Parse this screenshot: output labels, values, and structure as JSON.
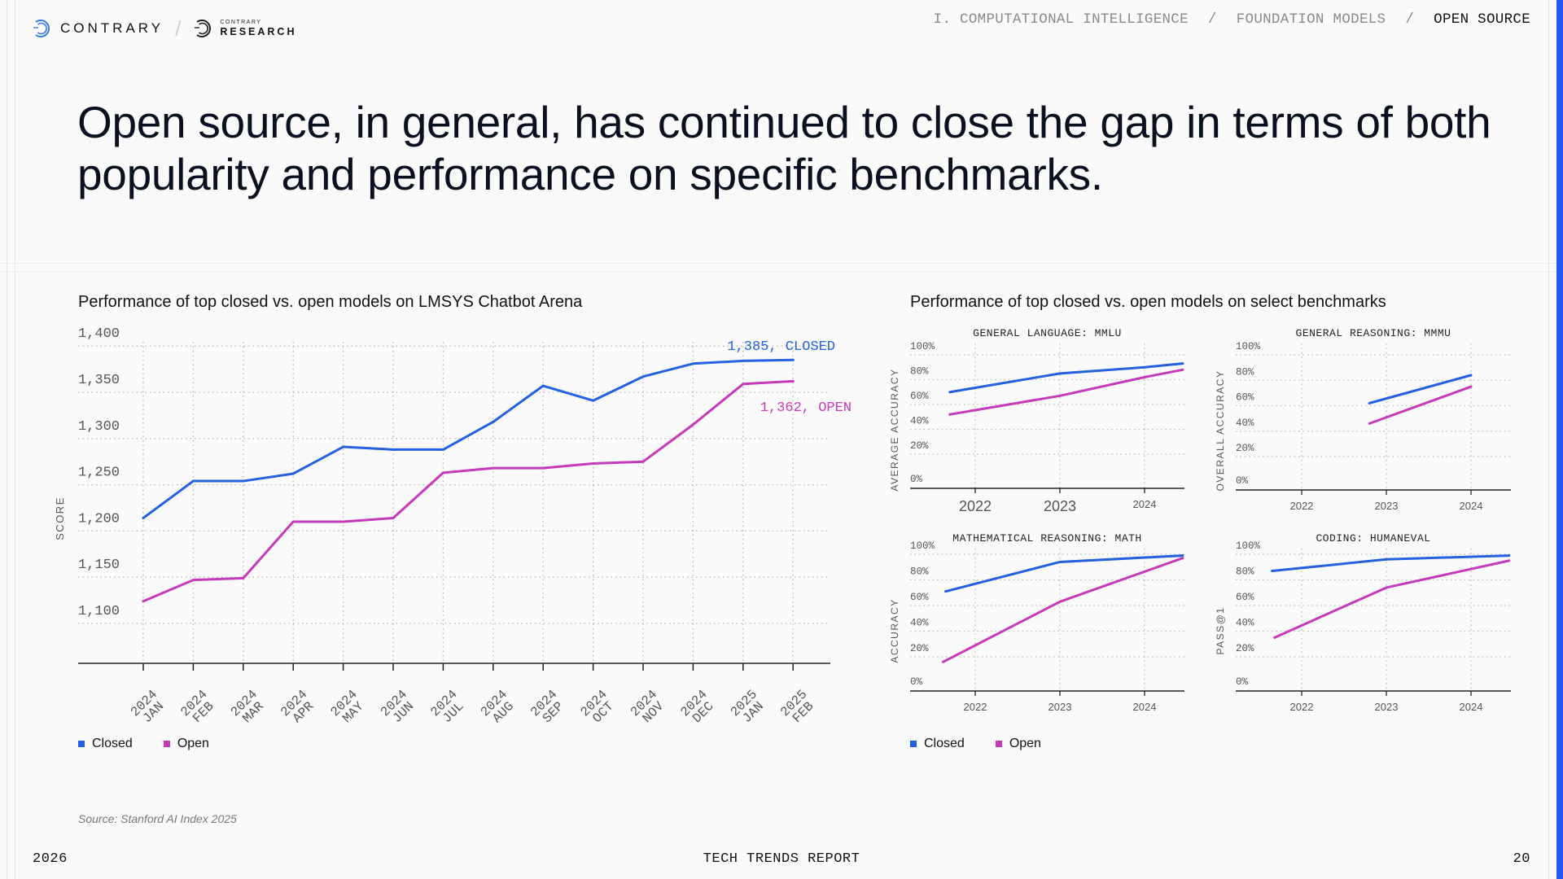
{
  "brand": {
    "name": "CONTRARY",
    "separator": "/",
    "research_small": "CONTRARY",
    "research_big": "RESEARCH"
  },
  "breadcrumb": [
    {
      "label": "I. COMPUTATIONAL INTELLIGENCE",
      "active": false
    },
    {
      "label": "FOUNDATION MODELS",
      "active": false
    },
    {
      "label": "OPEN SOURCE",
      "active": true
    }
  ],
  "breadcrumb_separator": "/",
  "headline": "Open source, in general, has continued to close the gap in terms of both popularity and performance on specific benchmarks.",
  "colors": {
    "closed": "#2460e0",
    "open": "#c53ab8",
    "accent": "#1f5bf0"
  },
  "legend": [
    {
      "label": "Closed",
      "key": "closed"
    },
    {
      "label": "Open",
      "key": "open"
    }
  ],
  "source": "Source: Stanford AI Index 2025",
  "footer": {
    "year": "2026",
    "report": "TECH TRENDS REPORT",
    "page": "20"
  },
  "chart_data": [
    {
      "type": "line",
      "title": "Performance of top closed vs. open models on LMSYS Chatbot Arena",
      "xlabel": "",
      "ylabel": "SCORE",
      "ylim": [
        1060,
        1410
      ],
      "yticks": [
        1100,
        1150,
        1200,
        1250,
        1300,
        1350,
        1400
      ],
      "ytick_labels": [
        "1,100",
        "1,150",
        "1,200",
        "1,250",
        "1,300",
        "1,350",
        "1,400"
      ],
      "categories": [
        [
          "2024",
          "JAN"
        ],
        [
          "2024",
          "FEB"
        ],
        [
          "2024",
          "MAR"
        ],
        [
          "2024",
          "APR"
        ],
        [
          "2024",
          "MAY"
        ],
        [
          "2024",
          "JUN"
        ],
        [
          "2024",
          "JUL"
        ],
        [
          "2024",
          "AUG"
        ],
        [
          "2024",
          "SEP"
        ],
        [
          "2024",
          "OCT"
        ],
        [
          "2024",
          "NOV"
        ],
        [
          "2024",
          "DEC"
        ],
        [
          "2025",
          "JAN"
        ],
        [
          "2025",
          "FEB"
        ]
      ],
      "grid": true,
      "legend": "bottom-left",
      "series": [
        {
          "name": "Closed",
          "key": "closed",
          "values": [
            1214,
            1254,
            1254,
            1262,
            1291,
            1288,
            1288,
            1318,
            1357,
            1341,
            1367,
            1381,
            1384,
            1385
          ],
          "end_label": "1,385, CLOSED"
        },
        {
          "name": "Open",
          "key": "open",
          "values": [
            1124,
            1147,
            1149,
            1210,
            1210,
            1214,
            1263,
            1268,
            1268,
            1273,
            1275,
            1315,
            1359,
            1362
          ],
          "end_label": "1,362, OPEN"
        }
      ]
    },
    {
      "type": "line",
      "title": "Performance of top closed vs. open models on select benchmarks",
      "legend": "bottom-left",
      "panels": [
        {
          "title": "GENERAL LANGUAGE: MMLU",
          "ylabel": "AVERAGE ACCURACY",
          "yticks": [
            "100%",
            "80%",
            "60%",
            "40%",
            "20%",
            "0%"
          ],
          "xticks": [
            "2022",
            "2023",
            "2024"
          ],
          "xtick_large": [
            true,
            true,
            false
          ],
          "series": [
            {
              "name": "Closed",
              "key": "closed",
              "x": [
                2021.7,
                2023.0,
                2024.0,
                2024.45
              ],
              "values": [
                70,
                85,
                90,
                93
              ]
            },
            {
              "name": "Open",
              "key": "open",
              "x": [
                2021.7,
                2023.0,
                2024.0,
                2024.45
              ],
              "values": [
                52,
                67,
                82,
                88
              ]
            }
          ]
        },
        {
          "title": "GENERAL REASONING: MMMU",
          "ylabel": "OVERALL ACCURACY",
          "yticks": [
            "100%",
            "80%",
            "60%",
            "40%",
            "20%",
            "0%"
          ],
          "xticks": [
            "2022",
            "2023",
            "2024"
          ],
          "xtick_large": [
            false,
            false,
            false
          ],
          "series": [
            {
              "name": "Closed",
              "key": "closed",
              "x": [
                2022.8,
                2024.0
              ],
              "values": [
                62,
                84
              ]
            },
            {
              "name": "Open",
              "key": "open",
              "x": [
                2022.8,
                2024.0
              ],
              "values": [
                46,
                75
              ]
            }
          ]
        },
        {
          "title": "MATHEMATICAL REASONING: MATH",
          "ylabel": "ACCURACY",
          "yticks": [
            "100%",
            "80%",
            "60%",
            "40%",
            "20%",
            "0%"
          ],
          "xticks": [
            "2022",
            "2023",
            "2024"
          ],
          "xtick_large": [
            false,
            false,
            false
          ],
          "series": [
            {
              "name": "Closed",
              "key": "closed",
              "x": [
                2021.65,
                2023.0,
                2024.45
              ],
              "values": [
                71,
                94,
                99
              ]
            },
            {
              "name": "Open",
              "key": "open",
              "x": [
                2021.62,
                2023.0,
                2024.45
              ],
              "values": [
                16,
                63,
                97
              ]
            }
          ]
        },
        {
          "title": "CODING: HUMANEVAL",
          "ylabel": "PASS@1",
          "yticks": [
            "100%",
            "80%",
            "60%",
            "40%",
            "20%",
            "0%"
          ],
          "xticks": [
            "2022",
            "2023",
            "2024"
          ],
          "xtick_large": [
            false,
            false,
            false
          ],
          "series": [
            {
              "name": "Closed",
              "key": "closed",
              "x": [
                2021.65,
                2023.0,
                2024.45
              ],
              "values": [
                87,
                96,
                99
              ]
            },
            {
              "name": "Open",
              "key": "open",
              "x": [
                2021.68,
                2023.0,
                2024.45
              ],
              "values": [
                35,
                74,
                95
              ]
            }
          ]
        }
      ]
    }
  ]
}
